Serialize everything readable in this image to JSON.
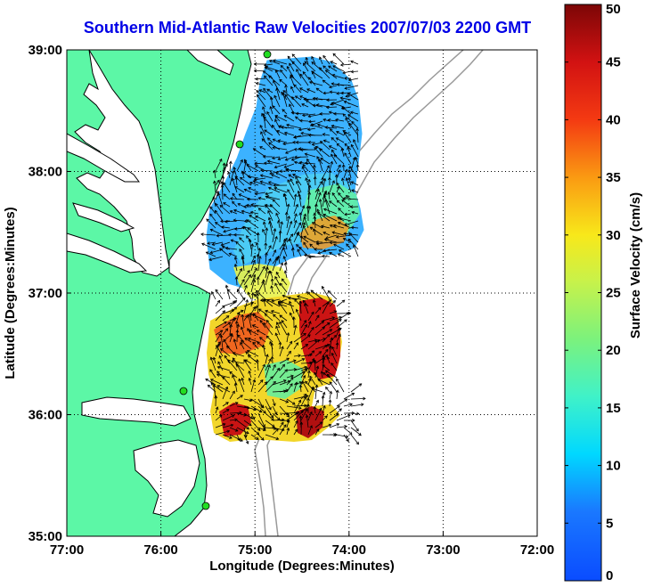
{
  "title": "Southern Mid-Atlantic Raw Velocities 2007/07/03 2200 GMT",
  "chart_data": {
    "type": "map",
    "xlabel": "Longitude (Degrees:Minutes)",
    "ylabel": "Latitude (Degrees:Minutes)",
    "xlim": [
      -77,
      -72
    ],
    "ylim": [
      35,
      39
    ],
    "x_ticks": [
      "77:00",
      "76:00",
      "75:00",
      "74:00",
      "73:00",
      "72:00"
    ],
    "y_ticks": [
      "39:00",
      "38:00",
      "37:00",
      "36:00",
      "35:00"
    ],
    "grid": "dotted",
    "colorbar": {
      "label": "Surface Velocity (cm/s)",
      "range": [
        0,
        50
      ],
      "ticks": [
        "0",
        "5",
        "10",
        "15",
        "20",
        "25",
        "30",
        "35",
        "40",
        "45",
        "50"
      ]
    },
    "colors": {
      "land": "#5cf7a6",
      "water": "#ffffff",
      "title": "#0000e6",
      "stations": "#22dd22",
      "bathymetry": "#999999"
    }
  }
}
